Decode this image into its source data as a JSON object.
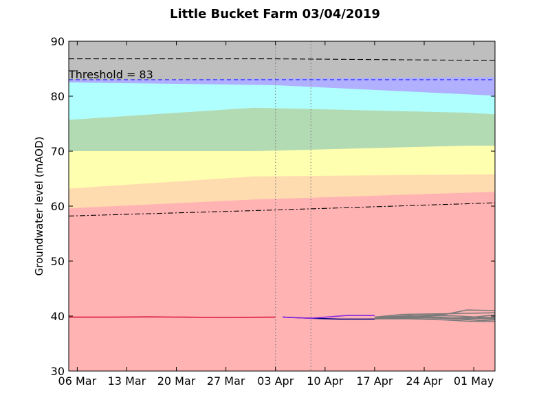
{
  "chart_data": {
    "type": "area",
    "title": "Little Bucket Farm 03/04/2019",
    "xlabel": "",
    "ylabel": "Groundwater level (mAOD)",
    "x_ticks": [
      "06 Mar",
      "13 Mar",
      "20 Mar",
      "27 Mar",
      "03 Apr",
      "10 Apr",
      "17 Apr",
      "24 Apr",
      "01 May"
    ],
    "x_tick_days": [
      0,
      7,
      14,
      21,
      28,
      35,
      42,
      49,
      56
    ],
    "xlim_days": [
      -1.2,
      59
    ],
    "ylim": [
      30,
      90
    ],
    "y_ticks": [
      30,
      40,
      50,
      60,
      70,
      80,
      90
    ],
    "threshold": {
      "label": "Threshold = 83",
      "value": 83
    },
    "vlines_days": [
      28,
      33
    ],
    "bands": [
      {
        "name": "band-gray",
        "color": "#bebebe",
        "upper": [
          [
            -1.2,
            90
          ],
          [
            59,
            90
          ]
        ]
      },
      {
        "name": "band-blue",
        "color": "#b0b0ff",
        "upper": [
          [
            -1.2,
            82.9
          ],
          [
            59,
            83.5
          ]
        ]
      },
      {
        "name": "band-cyan",
        "color": "#b0ffff",
        "upper": [
          [
            -1.2,
            82.5
          ],
          [
            28,
            82
          ],
          [
            59,
            80.1
          ]
        ]
      },
      {
        "name": "band-green",
        "color": "#b3dbb3",
        "upper": [
          [
            -1.2,
            75.7
          ],
          [
            25,
            77.9
          ],
          [
            55,
            77
          ],
          [
            59,
            76.7
          ]
        ]
      },
      {
        "name": "band-yellow",
        "color": "#ffffb0",
        "upper": [
          [
            -1.2,
            70
          ],
          [
            25,
            70
          ],
          [
            55,
            71
          ],
          [
            59,
            71
          ]
        ]
      },
      {
        "name": "band-orange",
        "color": "#ffdbb0",
        "upper": [
          [
            -1.2,
            63.2
          ],
          [
            25,
            65.4
          ],
          [
            59,
            65.8
          ]
        ]
      },
      {
        "name": "band-pink",
        "color": "#ffb3b3",
        "upper": [
          [
            -1.2,
            59.6
          ],
          [
            25,
            61.2
          ],
          [
            59,
            62.6
          ]
        ]
      }
    ],
    "reference_lines": [
      {
        "name": "upper-dashed-line",
        "color": "#000000",
        "dash": "8,4",
        "points": [
          [
            -1.2,
            86.8
          ],
          [
            28,
            86.8
          ],
          [
            59,
            86.5
          ]
        ]
      },
      {
        "name": "lower-dashdot-line",
        "color": "#000000",
        "dash": "8,3,2,3",
        "points": [
          [
            -1.2,
            58.2
          ],
          [
            28,
            59.3
          ],
          [
            59,
            60.6
          ]
        ]
      }
    ],
    "series": [
      {
        "color": "#dc143c",
        "points": [
          [
            -1.2,
            39.8
          ],
          [
            5,
            39.8
          ],
          [
            10,
            39.85
          ],
          [
            15,
            39.8
          ],
          [
            20,
            39.75
          ],
          [
            28,
            39.8
          ]
        ]
      },
      {
        "color": "#000080",
        "points": [
          [
            29,
            39.8
          ],
          [
            33,
            39.6
          ],
          [
            37,
            39.45
          ],
          [
            42,
            39.45
          ]
        ]
      },
      {
        "color": "#8a2be2",
        "points": [
          [
            29,
            39.8
          ],
          [
            33,
            39.6
          ],
          [
            36,
            39.9
          ],
          [
            38,
            40.1
          ],
          [
            42,
            40.1
          ]
        ]
      },
      {
        "color": "#7a7a7a",
        "points": [
          [
            42,
            39.5
          ],
          [
            47,
            39.7
          ],
          [
            52,
            39.6
          ],
          [
            56,
            39.8
          ],
          [
            59,
            40.2
          ]
        ]
      },
      {
        "color": "#7a7a7a",
        "points": [
          [
            42,
            39.7
          ],
          [
            47,
            40.0
          ],
          [
            52,
            40.3
          ],
          [
            55,
            41.1
          ],
          [
            59,
            41.0
          ]
        ]
      },
      {
        "color": "#7a7a7a",
        "points": [
          [
            42,
            39.6
          ],
          [
            46,
            39.8
          ],
          [
            50,
            40.1
          ],
          [
            54,
            40.0
          ],
          [
            59,
            39.6
          ]
        ]
      },
      {
        "color": "#7a7a7a",
        "points": [
          [
            42,
            39.5
          ],
          [
            47,
            39.5
          ],
          [
            52,
            39.3
          ],
          [
            56,
            39.0
          ],
          [
            59,
            39.0
          ]
        ]
      },
      {
        "color": "#7a7a7a",
        "points": [
          [
            42,
            39.8
          ],
          [
            46,
            40.3
          ],
          [
            51,
            40.4
          ],
          [
            55,
            40.5
          ],
          [
            59,
            40.6
          ]
        ]
      },
      {
        "color": "#7a7a7a",
        "points": [
          [
            42,
            39.6
          ],
          [
            48,
            39.9
          ],
          [
            53,
            39.5
          ],
          [
            57,
            39.2
          ],
          [
            59,
            39.3
          ]
        ]
      },
      {
        "color": "#7a7a7a",
        "points": [
          [
            42,
            39.7
          ],
          [
            47,
            40.1
          ],
          [
            51,
            39.8
          ],
          [
            55,
            39.5
          ],
          [
            59,
            39.8
          ]
        ]
      },
      {
        "color": "#7a7a7a",
        "points": [
          [
            42,
            39.5
          ],
          [
            46,
            39.6
          ],
          [
            50,
            39.7
          ],
          [
            54,
            39.6
          ],
          [
            59,
            39.5
          ]
        ]
      }
    ]
  }
}
